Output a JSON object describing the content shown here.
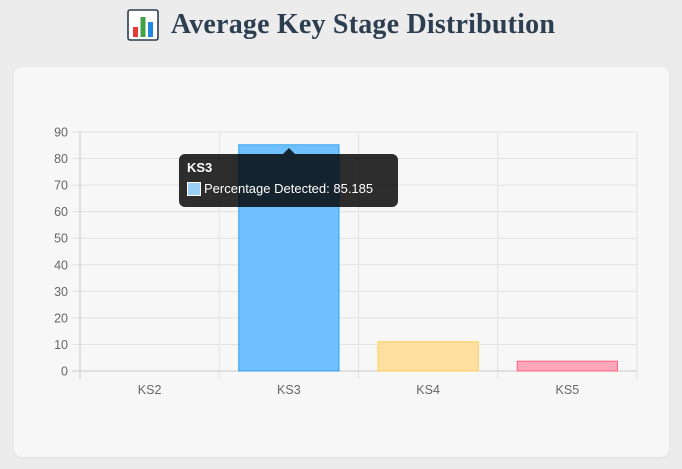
{
  "page": {
    "title": "Average Key Stage Distribution",
    "title_icon": "bar-chart-icon"
  },
  "chart_data": {
    "type": "bar",
    "categories": [
      "KS2",
      "KS3",
      "KS4",
      "KS5"
    ],
    "series": [
      {
        "name": "Percentage Detected",
        "values": [
          0,
          85.185,
          11,
          3.7
        ],
        "fill_colors": [
          "#9ad0f5",
          "#6fc0ff",
          "#ffe0a0",
          "#ffa6b8"
        ],
        "border_colors": [
          "#36a2eb",
          "#36a2eb",
          "#ffcd56",
          "#ff6384"
        ]
      }
    ],
    "ylim": [
      0,
      90
    ],
    "y_ticks": [
      "0",
      "10",
      "20",
      "30",
      "40",
      "50",
      "60",
      "70",
      "80",
      "90"
    ],
    "grid": true,
    "legend": "none"
  },
  "tooltip": {
    "title": "KS3",
    "label": "Percentage Detected: 85.185",
    "swatch_color": "#9ad0f5"
  }
}
